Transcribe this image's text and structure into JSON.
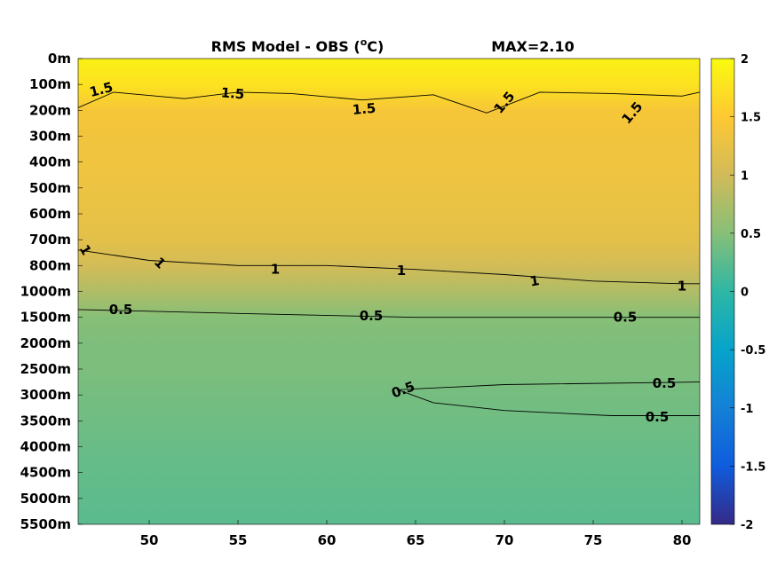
{
  "chart_data": {
    "type": "heatmap",
    "title": "RMS Model - OBS (",
    "title_unit": "C)",
    "title_degree": "o",
    "max_label": "MAX=2.10",
    "xlabel": "",
    "ylabel": "",
    "xlim": [
      46,
      81
    ],
    "x_ticks": [
      50,
      55,
      60,
      65,
      70,
      75,
      80
    ],
    "x_tick_labels": [
      "50",
      "55",
      "60",
      "65",
      "70",
      "75",
      "80"
    ],
    "y_tick_labels": [
      "0m",
      "100m",
      "200m",
      "300m",
      "400m",
      "500m",
      "600m",
      "700m",
      "800m",
      "1000m",
      "1500m",
      "2000m",
      "2500m",
      "3000m",
      "3500m",
      "4000m",
      "4500m",
      "5000m",
      "5500m"
    ],
    "colorbar": {
      "range": [
        -2,
        2
      ],
      "ticks": [
        2,
        1.5,
        1,
        0.5,
        0,
        -0.5,
        -1,
        -1.5,
        -2
      ],
      "tick_labels": [
        "2",
        "1.5",
        "1",
        "0.5",
        "0",
        "-0.5",
        "-1",
        "-1.5",
        "-2"
      ],
      "colormap": "parula"
    },
    "depth_profile": [
      {
        "level": 0,
        "value": 1.9
      },
      {
        "level": 1,
        "value": 1.75
      },
      {
        "level": 2,
        "value": 1.42
      },
      {
        "level": 3,
        "value": 1.36
      },
      {
        "level": 4,
        "value": 1.34
      },
      {
        "level": 5,
        "value": 1.3
      },
      {
        "level": 6,
        "value": 1.26
      },
      {
        "level": 7,
        "value": 1.2
      },
      {
        "level": 8,
        "value": 1.02
      },
      {
        "level": 9,
        "value": 0.78
      },
      {
        "level": 10,
        "value": 0.5
      },
      {
        "level": 11,
        "value": 0.45
      },
      {
        "level": 12,
        "value": 0.45
      },
      {
        "level": 13,
        "value": 0.4
      },
      {
        "level": 14,
        "value": 0.37
      },
      {
        "level": 15,
        "value": 0.33
      },
      {
        "level": 16,
        "value": 0.3
      },
      {
        "level": 17,
        "value": 0.27
      },
      {
        "level": 18,
        "value": 0.25
      }
    ],
    "contours": [
      {
        "level": 1.5,
        "label": "1.5",
        "points": [
          [
            46,
            1.9
          ],
          [
            48,
            1.3
          ],
          [
            52,
            1.55
          ],
          [
            55,
            1.3
          ],
          [
            58,
            1.35
          ],
          [
            62,
            1.6
          ],
          [
            66,
            1.4
          ],
          [
            69,
            2.1
          ],
          [
            72,
            1.3
          ],
          [
            76,
            1.35
          ],
          [
            80,
            1.45
          ],
          [
            81,
            1.3
          ]
        ]
      },
      {
        "level": 1,
        "label": "1",
        "points": [
          [
            46,
            7.4
          ],
          [
            50,
            7.8
          ],
          [
            55,
            8.0
          ],
          [
            60,
            8.0
          ],
          [
            65,
            8.15
          ],
          [
            70,
            8.35
          ],
          [
            75,
            8.6
          ],
          [
            80,
            8.7
          ],
          [
            81,
            8.7
          ]
        ]
      },
      {
        "level": 0.5,
        "label": "0.5",
        "points": [
          [
            46,
            9.7
          ],
          [
            55,
            9.85
          ],
          [
            65,
            10.0
          ],
          [
            75,
            10.0
          ],
          [
            81,
            10.0
          ]
        ]
      },
      {
        "level": 0.5,
        "label": "0.5",
        "points": [
          [
            64,
            12.8
          ],
          [
            70,
            12.6
          ],
          [
            81,
            12.5
          ]
        ]
      },
      {
        "level": 0.5,
        "label": "0.5",
        "points": [
          [
            64,
            12.8
          ],
          [
            66,
            13.3
          ],
          [
            70,
            13.6
          ],
          [
            76,
            13.8
          ],
          [
            81,
            13.8
          ]
        ]
      }
    ],
    "contour_labels": [
      {
        "text": "1.5",
        "x": 47.3,
        "y": 1.2,
        "angle": -15
      },
      {
        "text": "1.5",
        "x": 54.7,
        "y": 1.35,
        "angle": 5
      },
      {
        "text": "1.5",
        "x": 62.1,
        "y": 1.95,
        "angle": -5
      },
      {
        "text": "1.5",
        "x": 70.0,
        "y": 1.7,
        "angle": -50
      },
      {
        "text": "1.5",
        "x": 77.2,
        "y": 2.1,
        "angle": -50
      },
      {
        "text": "1",
        "x": 46.4,
        "y": 7.4,
        "angle": 60
      },
      {
        "text": "1",
        "x": 50.6,
        "y": 7.9,
        "angle": 45
      },
      {
        "text": "1",
        "x": 57.1,
        "y": 8.15,
        "angle": 0
      },
      {
        "text": "1",
        "x": 64.2,
        "y": 8.2,
        "angle": 0
      },
      {
        "text": "1",
        "x": 71.7,
        "y": 8.6,
        "angle": -10
      },
      {
        "text": "1",
        "x": 80.0,
        "y": 8.8,
        "angle": 0
      },
      {
        "text": "0.5",
        "x": 48.4,
        "y": 9.7,
        "angle": 0
      },
      {
        "text": "0.5",
        "x": 62.5,
        "y": 9.95,
        "angle": 0
      },
      {
        "text": "0.5",
        "x": 76.8,
        "y": 10.0,
        "angle": 0
      },
      {
        "text": "0.5",
        "x": 64.3,
        "y": 12.8,
        "angle": -20
      },
      {
        "text": "0.5",
        "x": 79.0,
        "y": 12.55,
        "angle": 0
      },
      {
        "text": "0.5",
        "x": 78.6,
        "y": 13.85,
        "angle": 0
      }
    ]
  }
}
